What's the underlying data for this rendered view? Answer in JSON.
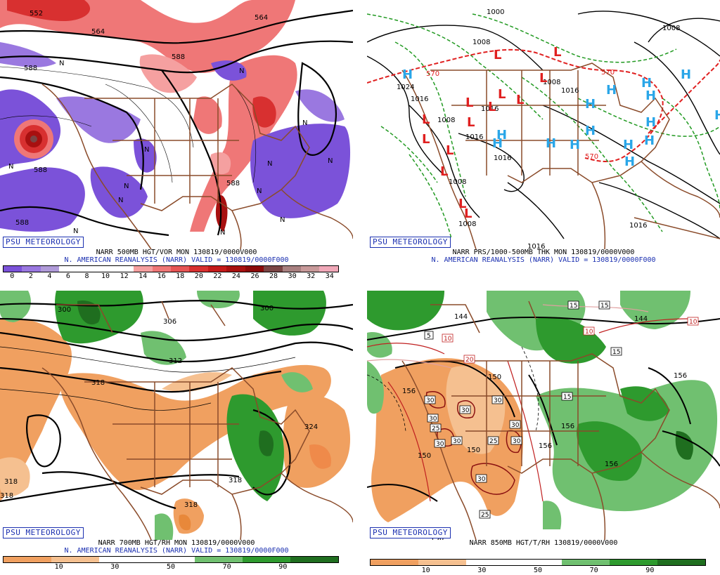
{
  "panels": [
    {
      "credit": "PSU METEOROLOGY",
      "caption": "NARR 500MB HGT/VOR MON 130819/0000V000",
      "valid": "N. AMERICAN REANALYSIS (NARR) VALID = 130819/0000F000",
      "colorbar_ticks": [
        "0",
        "2",
        "4",
        "6",
        "8",
        "10",
        "12",
        "14",
        "16",
        "18",
        "20",
        "22",
        "24",
        "26",
        "28",
        "30",
        "32",
        "34"
      ],
      "colorbar_colors": [
        "#7b52d9",
        "#9a78e0",
        "#b09bd9",
        "#ffffff",
        "#ffffff",
        "#ffffff",
        "#ffffff",
        "#f5a0a0",
        "#ef7777",
        "#e65555",
        "#d83030",
        "#c41a1a",
        "#a81010",
        "#8c0a0a",
        "#7a4545",
        "#a88080",
        "#c89a9a",
        "#f0a8b8"
      ],
      "contour_labels": [
        "552",
        "564",
        "564",
        "588",
        "588",
        "588",
        "588",
        "588"
      ],
      "feature_labels": [
        "N",
        "N",
        "N",
        "N",
        "N",
        "N",
        "N",
        "N",
        "N",
        "N",
        "N",
        "N",
        "N"
      ]
    },
    {
      "credit": "PSU METEOROLOGY",
      "caption": "NARR PRS/1000-500MB THK MON 130819/0000V000",
      "valid": "N. AMERICAN REANALYSIS (NARR) VALID = 130819/0000F000",
      "pressure_labels": [
        "1000",
        "1008",
        "1008",
        "1024",
        "1016",
        "1008",
        "1016",
        "1016",
        "1016",
        "1008",
        "1016",
        "1008",
        "1016",
        "1008",
        "1016",
        "1016"
      ],
      "thickness_labels": [
        "570",
        "570",
        "570"
      ],
      "lows": [
        "L",
        "L",
        "L",
        "L",
        "L",
        "L",
        "L",
        "L",
        "L",
        "L",
        "L",
        "L",
        "L",
        "L"
      ],
      "highs": [
        "H",
        "H",
        "H",
        "H",
        "H",
        "H",
        "H",
        "H",
        "H",
        "H",
        "H",
        "H",
        "H",
        "H",
        "H",
        "H"
      ]
    },
    {
      "credit": "PSU METEOROLOGY",
      "caption": "NARR 700MB HGT/RH MON 130819/0000V000",
      "valid": "N. AMERICAN REANALYSIS (NARR) VALID = 130819/0000F000",
      "colorbar_ticks": [
        "10",
        "30",
        "50",
        "70",
        "90"
      ],
      "colorbar_colors": [
        "#f0a060",
        "#f5c090",
        "#ffffff",
        "#ffffff",
        "#70c070",
        "#2e9a2e",
        "#1f6e1f"
      ],
      "contour_labels": [
        "300",
        "300",
        "306",
        "312",
        "318",
        "324",
        "318",
        "318",
        "318",
        "318"
      ]
    },
    {
      "credit": "PSU METEOROLOGY",
      "caption": "NARR 850MB HGT/T/RH 130819/0000V000",
      "colorbar_ticks": [
        "10",
        "30",
        "50",
        "70",
        "90"
      ],
      "colorbar_colors": [
        "#f0a060",
        "#f5c090",
        "#ffffff",
        "#ffffff",
        "#70c070",
        "#2e9a2e",
        "#1f6e1f"
      ],
      "contour_labels": [
        "144",
        "144",
        "156",
        "150",
        "150",
        "150",
        "156",
        "156",
        "156",
        "156"
      ],
      "temp_boxes": [
        "5",
        "10",
        "15",
        "20",
        "30",
        "30",
        "30",
        "30",
        "25",
        "30",
        "30",
        "30",
        "25",
        "30",
        "25",
        "30",
        "15",
        "15",
        "10",
        "10",
        "5",
        "15"
      ],
      "bottom_partial": "156"
    }
  ]
}
